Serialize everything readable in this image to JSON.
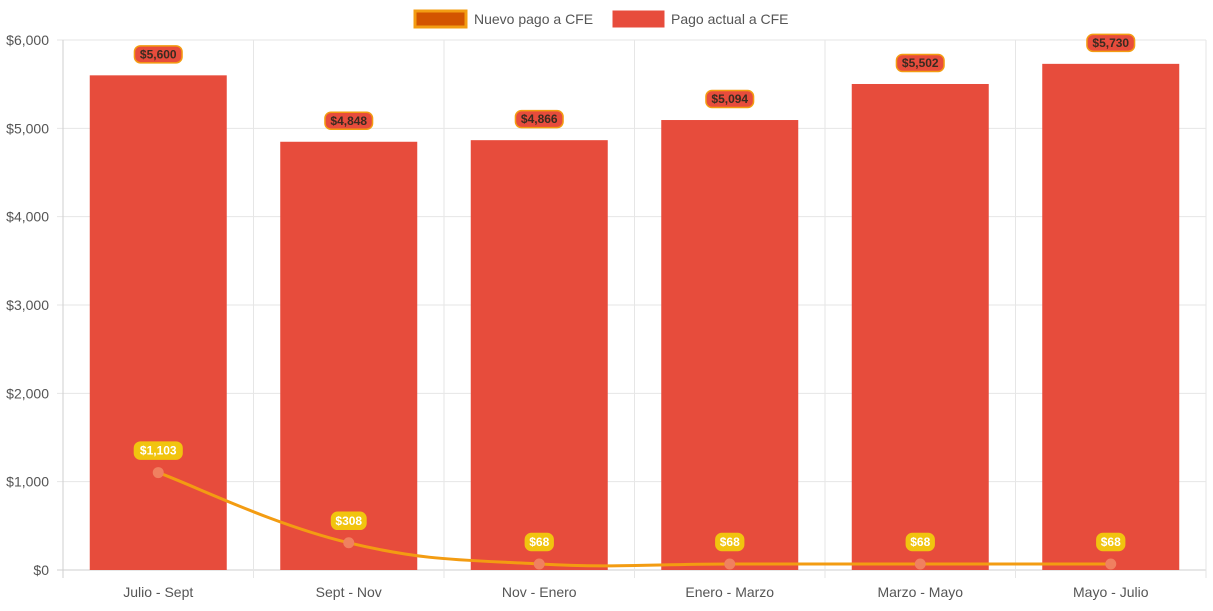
{
  "chart_data": {
    "type": "bar",
    "categories": [
      "Julio - Sept",
      "Sept - Nov",
      "Nov - Enero",
      "Enero - Marzo",
      "Marzo - Mayo",
      "Mayo - Julio"
    ],
    "series": [
      {
        "name": "Nuevo pago a CFE",
        "type": "line",
        "values": [
          1103,
          308,
          68,
          68,
          68,
          68
        ],
        "labels": [
          "$1,103",
          "$308",
          "$68",
          "$68",
          "$68",
          "$68"
        ],
        "color": "#f39c12",
        "point_color": "#f08060",
        "label_bg": "#f1c40f"
      },
      {
        "name": "Pago actual a CFE",
        "type": "bar",
        "values": [
          5600,
          4848,
          4866,
          5094,
          5502,
          5730
        ],
        "labels": [
          "$5,600",
          "$4,848",
          "$4,866",
          "$5,094",
          "$5,502",
          "$5,730"
        ],
        "color": "#e74c3c",
        "label_bg": "#e74c3c",
        "label_border": "#f39c12"
      }
    ],
    "y_ticks": [
      "$0",
      "$1,000",
      "$2,000",
      "$3,000",
      "$4,000",
      "$5,000",
      "$6,000"
    ],
    "ylim": [
      0,
      6000
    ],
    "grid": true,
    "legend_position": "top",
    "legend_swatches": {
      "Nuevo pago a CFE": {
        "fill": "#d35400",
        "border": "#f39c12"
      },
      "Pago actual a CFE": {
        "fill": "#e74c3c",
        "border": "#e74c3c"
      }
    }
  }
}
